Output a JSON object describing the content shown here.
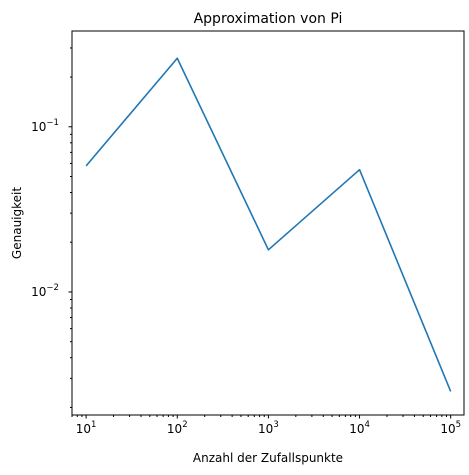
{
  "chart_data": {
    "type": "line",
    "title": "Approximation von Pi",
    "xlabel": "Anzahl der Zufallspunkte",
    "ylabel": "Genauigkeit",
    "xscale": "log",
    "yscale": "log",
    "xlim": [
      7,
      140000
    ],
    "ylim": [
      0.0018,
      0.38
    ],
    "grid": false,
    "x_ticks": [
      {
        "value": 10,
        "base": "10",
        "exp": "1"
      },
      {
        "value": 100,
        "base": "10",
        "exp": "2"
      },
      {
        "value": 1000,
        "base": "10",
        "exp": "3"
      },
      {
        "value": 10000,
        "base": "10",
        "exp": "4"
      },
      {
        "value": 100000,
        "base": "10",
        "exp": "5"
      }
    ],
    "y_ticks": [
      {
        "value": 0.01,
        "base": "10",
        "exp": "−2"
      },
      {
        "value": 0.1,
        "base": "10",
        "exp": "−1"
      }
    ],
    "series": [
      {
        "color": "#1f77b4",
        "x": [
          10,
          100,
          1000,
          10000,
          100000
        ],
        "y": [
          0.058,
          0.26,
          0.018,
          0.055,
          0.0025
        ]
      }
    ]
  }
}
